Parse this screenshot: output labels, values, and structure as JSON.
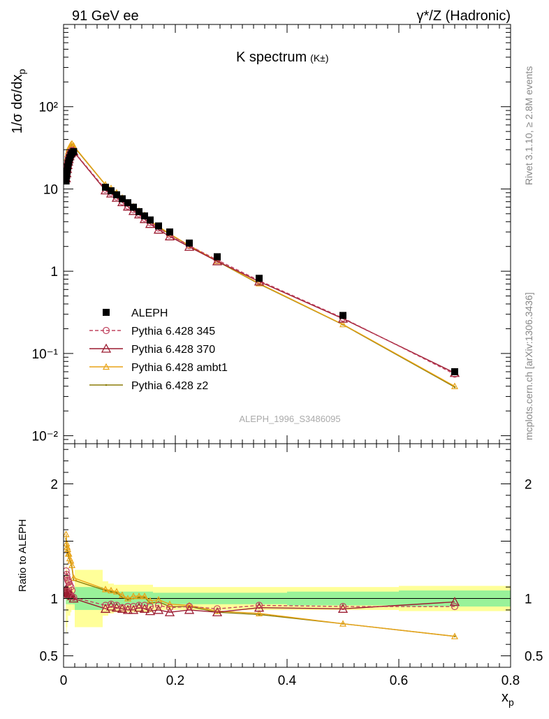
{
  "header": {
    "left": "91 GeV ee",
    "right": "γ*/Z (Hadronic)"
  },
  "side_labels": {
    "rivet": "Rivet 3.1.10, ≥ 2.8M events",
    "mcplots": "mcplots.cern.ch [arXiv:1306.3436]"
  },
  "analysis_id": "ALEPH_1996_S3486095",
  "chart_data": [
    {
      "type": "scatter",
      "title": "K spectrum",
      "title_sub": "(K±)",
      "ylabel": "1/σ dσ/dx",
      "ylabel_sub": "p",
      "yscale": "log",
      "ylim": [
        0.008,
        1000
      ],
      "xlim": [
        0,
        0.8
      ],
      "ytick_labels": [
        "10⁻²",
        "10⁻¹",
        "1",
        "10",
        "10²"
      ],
      "ytick_values": [
        0.01,
        0.1,
        1,
        10,
        100
      ],
      "legend": "left-middle",
      "series": [
        {
          "name": "ALEPH",
          "color": "#000000",
          "style": "square-marker",
          "x": [
            0.0045,
            0.0055,
            0.0065,
            0.0075,
            0.0085,
            0.0095,
            0.011,
            0.013,
            0.015,
            0.018,
            0.075,
            0.085,
            0.095,
            0.105,
            0.115,
            0.125,
            0.135,
            0.145,
            0.155,
            0.17,
            0.19,
            0.225,
            0.275,
            0.35,
            0.5,
            0.7
          ],
          "y": [
            12.5,
            14.5,
            16.5,
            18.5,
            20.5,
            22,
            24,
            26,
            27.5,
            28.5,
            10.5,
            9.5,
            8.5,
            7.6,
            6.8,
            6.0,
            5.3,
            4.7,
            4.2,
            3.55,
            3.0,
            2.2,
            1.5,
            0.82,
            0.29,
            0.06
          ]
        },
        {
          "name": "Pythia 6.428 345",
          "color": "#c0435f",
          "style": "dashed-circle",
          "x": [
            0.0045,
            0.0055,
            0.0065,
            0.0075,
            0.0085,
            0.0095,
            0.011,
            0.013,
            0.015,
            0.018,
            0.075,
            0.085,
            0.095,
            0.105,
            0.115,
            0.125,
            0.135,
            0.145,
            0.155,
            0.17,
            0.19,
            0.225,
            0.275,
            0.35,
            0.5,
            0.7
          ],
          "y": [
            15.5,
            17.5,
            19.5,
            21.5,
            23.5,
            25,
            27,
            28.5,
            29.5,
            28.8,
            9.9,
            9.0,
            8.0,
            7.0,
            6.2,
            5.6,
            5.0,
            4.4,
            3.9,
            3.35,
            2.75,
            2.05,
            1.37,
            0.77,
            0.27,
            0.056
          ]
        },
        {
          "name": "Pythia 6.428 370",
          "color": "#9b1b30",
          "style": "solid-triangle",
          "x": [
            0.0045,
            0.0055,
            0.0065,
            0.0075,
            0.0085,
            0.0095,
            0.011,
            0.013,
            0.015,
            0.018,
            0.075,
            0.085,
            0.095,
            0.105,
            0.115,
            0.125,
            0.135,
            0.145,
            0.155,
            0.17,
            0.19,
            0.225,
            0.275,
            0.35,
            0.5,
            0.7
          ],
          "y": [
            13.5,
            15.5,
            17.5,
            19.5,
            21.5,
            23,
            25,
            27,
            28,
            28.5,
            9.6,
            8.8,
            7.8,
            6.9,
            6.1,
            5.4,
            4.9,
            4.3,
            3.75,
            3.2,
            2.65,
            1.98,
            1.32,
            0.75,
            0.265,
            0.058
          ]
        },
        {
          "name": "Pythia 6.428 ambt1",
          "color": "#e8a317",
          "style": "solid-small-triangle",
          "x": [
            0.0045,
            0.0055,
            0.0065,
            0.0075,
            0.0085,
            0.0095,
            0.011,
            0.013,
            0.015,
            0.018,
            0.075,
            0.085,
            0.095,
            0.105,
            0.115,
            0.125,
            0.135,
            0.145,
            0.155,
            0.17,
            0.19,
            0.225,
            0.275,
            0.35,
            0.5,
            0.7
          ],
          "y": [
            19.5,
            21.5,
            24,
            26.5,
            28.5,
            30.5,
            32.5,
            34.5,
            35.5,
            33.5,
            11.3,
            10.2,
            9.0,
            7.8,
            6.8,
            6.1,
            5.4,
            4.8,
            4.1,
            3.5,
            2.85,
            2.06,
            1.33,
            0.71,
            0.226,
            0.04
          ]
        },
        {
          "name": "Pythia 6.428 z2",
          "color": "#8b7d09",
          "style": "solid-dot",
          "x": [
            0.0045,
            0.0055,
            0.0065,
            0.0075,
            0.0085,
            0.0095,
            0.011,
            0.013,
            0.015,
            0.018,
            0.075,
            0.085,
            0.095,
            0.105,
            0.115,
            0.125,
            0.135,
            0.145,
            0.155,
            0.17,
            0.19,
            0.225,
            0.275,
            0.35,
            0.5,
            0.7
          ],
          "y": [
            19,
            21,
            23.5,
            26,
            28,
            30,
            32,
            34,
            35,
            33,
            11.2,
            10.1,
            8.9,
            7.7,
            6.7,
            6.0,
            5.35,
            4.75,
            4.05,
            3.45,
            2.8,
            2.04,
            1.32,
            0.7,
            0.224,
            0.039
          ]
        }
      ]
    },
    {
      "type": "line",
      "ylabel": "Ratio to ALEPH",
      "xlabel": "x",
      "xlabel_sub": "p",
      "ylim": [
        0.4,
        2.35
      ],
      "xlim": [
        0,
        0.8
      ],
      "ytick_labels": [
        "0.5",
        "1",
        "2"
      ],
      "ytick_values": [
        0.5,
        1,
        2
      ],
      "xtick_labels": [
        "0",
        "0.2",
        "0.4",
        "0.6",
        "0.8"
      ],
      "xtick_values": [
        0,
        0.2,
        0.4,
        0.6,
        0.8
      ],
      "bands": {
        "inner_color": "#99f299",
        "outer_color": "#ffff99",
        "x_edges": [
          0.004,
          0.005,
          0.006,
          0.007,
          0.008,
          0.009,
          0.01,
          0.012,
          0.014,
          0.016,
          0.02,
          0.07,
          0.08,
          0.09,
          0.1,
          0.11,
          0.12,
          0.13,
          0.14,
          0.15,
          0.16,
          0.18,
          0.2,
          0.25,
          0.3,
          0.4,
          0.6,
          0.8
        ],
        "inner": [
          0.05,
          0.05,
          0.05,
          0.05,
          0.05,
          0.05,
          0.05,
          0.05,
          0.05,
          0.05,
          0.1,
          0.06,
          0.06,
          0.06,
          0.06,
          0.06,
          0.06,
          0.06,
          0.06,
          0.06,
          0.05,
          0.05,
          0.05,
          0.05,
          0.05,
          0.06,
          0.07
        ],
        "outer": [
          0.25,
          0.3,
          0.25,
          0.2,
          0.15,
          0.15,
          0.15,
          0.12,
          0.1,
          0.1,
          0.25,
          0.15,
          0.13,
          0.12,
          0.12,
          0.12,
          0.12,
          0.12,
          0.12,
          0.12,
          0.1,
          0.1,
          0.1,
          0.1,
          0.1,
          0.1,
          0.11
        ]
      },
      "series": [
        {
          "name": "Pythia 6.428 345",
          "color": "#c0435f",
          "style": "dashed-circle",
          "x": [
            0.0045,
            0.0055,
            0.0065,
            0.0075,
            0.0085,
            0.0095,
            0.011,
            0.013,
            0.015,
            0.018,
            0.075,
            0.085,
            0.095,
            0.105,
            0.115,
            0.125,
            0.135,
            0.145,
            0.155,
            0.17,
            0.19,
            0.225,
            0.275,
            0.35,
            0.5,
            0.7
          ],
          "y": [
            1.24,
            1.21,
            1.18,
            1.16,
            1.15,
            1.14,
            1.12,
            1.1,
            1.07,
            1.01,
            0.94,
            0.95,
            0.94,
            0.92,
            0.93,
            0.93,
            0.94,
            0.94,
            0.93,
            0.94,
            0.92,
            0.93,
            0.91,
            0.94,
            0.93,
            0.93
          ]
        },
        {
          "name": "Pythia 6.428 370",
          "color": "#9b1b30",
          "style": "solid-triangle",
          "x": [
            0.0045,
            0.0055,
            0.0065,
            0.0075,
            0.0085,
            0.0095,
            0.011,
            0.013,
            0.015,
            0.018,
            0.075,
            0.085,
            0.095,
            0.105,
            0.115,
            0.125,
            0.135,
            0.145,
            0.155,
            0.17,
            0.19,
            0.225,
            0.275,
            0.35,
            0.5,
            0.7
          ],
          "y": [
            1.08,
            1.07,
            1.06,
            1.05,
            1.05,
            1.04,
            1.04,
            1.04,
            1.02,
            1.0,
            0.91,
            0.93,
            0.92,
            0.91,
            0.9,
            0.9,
            0.92,
            0.91,
            0.89,
            0.9,
            0.88,
            0.9,
            0.88,
            0.92,
            0.91,
            0.97
          ]
        },
        {
          "name": "Pythia 6.428 ambt1",
          "color": "#e8a317",
          "style": "solid-small-triangle",
          "x": [
            0.0045,
            0.0055,
            0.0065,
            0.0075,
            0.0085,
            0.0095,
            0.011,
            0.013,
            0.015,
            0.018,
            0.075,
            0.085,
            0.095,
            0.105,
            0.115,
            0.125,
            0.135,
            0.145,
            0.155,
            0.17,
            0.19,
            0.225,
            0.275,
            0.35,
            0.5,
            0.7
          ],
          "y": [
            1.56,
            1.48,
            1.45,
            1.43,
            1.39,
            1.39,
            1.35,
            1.33,
            1.29,
            1.18,
            1.08,
            1.07,
            1.06,
            1.03,
            1.0,
            1.02,
            1.02,
            1.02,
            0.98,
            0.99,
            0.95,
            0.94,
            0.89,
            0.87,
            0.78,
            0.67
          ]
        },
        {
          "name": "Pythia 6.428 z2",
          "color": "#8b7d09",
          "style": "solid-dot",
          "x": [
            0.0045,
            0.0055,
            0.0065,
            0.0075,
            0.0085,
            0.0095,
            0.011,
            0.013,
            0.015,
            0.018,
            0.075,
            0.085,
            0.095,
            0.105,
            0.115,
            0.125,
            0.135,
            0.145,
            0.155,
            0.17,
            0.19,
            0.225,
            0.275,
            0.35,
            0.5,
            0.7
          ],
          "y": [
            1.52,
            1.45,
            1.42,
            1.4,
            1.37,
            1.36,
            1.33,
            1.31,
            1.27,
            1.16,
            1.07,
            1.06,
            1.05,
            1.01,
            0.99,
            1.0,
            1.01,
            1.01,
            0.96,
            0.97,
            0.93,
            0.93,
            0.88,
            0.86,
            0.78,
            0.67
          ]
        }
      ]
    }
  ]
}
